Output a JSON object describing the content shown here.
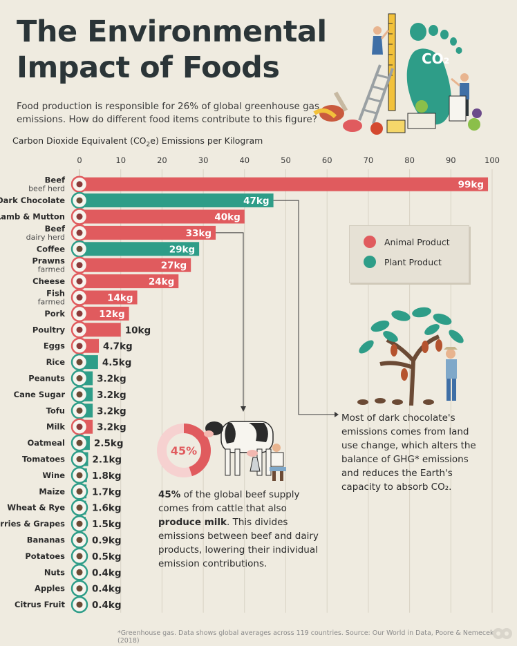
{
  "title_line1": "The Environmental",
  "title_line2": "Impact of Foods",
  "subtitle": "Food production is responsible for 26% of global greenhouse gas emissions. How do different food items contribute to this figure?",
  "axis_title_main": "Carbon Dioxide Equivalent (CO",
  "axis_title_sub": "2",
  "axis_title_end": "e) Emissions per Kilogram",
  "colors": {
    "animal": "#e05b5e",
    "plant": "#2e9d88",
    "background": "#efebe0"
  },
  "legend": {
    "animal_label": "Animal Product",
    "plant_label": "Plant Product"
  },
  "illustration_co2": "CO₂",
  "chart_data": {
    "type": "bar",
    "orientation": "horizontal",
    "xlim": [
      0,
      100
    ],
    "xticks": [
      0,
      10,
      20,
      30,
      40,
      50,
      60,
      70,
      80,
      90,
      100
    ],
    "grid": true,
    "legend_position": "top-right",
    "bars": [
      {
        "name": "Beef",
        "sub": "beef herd",
        "value": 99,
        "label": "99kg",
        "kind": "animal",
        "icon": "beef-icon"
      },
      {
        "name": "Dark Chocolate",
        "sub": "",
        "value": 47,
        "label": "47kg",
        "kind": "plant",
        "icon": "chocolate-icon"
      },
      {
        "name": "Lamb & Mutton",
        "sub": "",
        "value": 40,
        "label": "40kg",
        "kind": "animal",
        "icon": "lamb-icon"
      },
      {
        "name": "Beef",
        "sub": "dairy herd",
        "value": 33,
        "label": "33kg",
        "kind": "animal",
        "icon": "beef-icon"
      },
      {
        "name": "Coffee",
        "sub": "",
        "value": 29,
        "label": "29kg",
        "kind": "plant",
        "icon": "coffee-icon"
      },
      {
        "name": "Prawns",
        "sub": "farmed",
        "value": 27,
        "label": "27kg",
        "kind": "animal",
        "icon": "prawn-icon"
      },
      {
        "name": "Cheese",
        "sub": "",
        "value": 24,
        "label": "24kg",
        "kind": "animal",
        "icon": "cheese-icon"
      },
      {
        "name": "Fish",
        "sub": "farmed",
        "value": 14,
        "label": "14kg",
        "kind": "animal",
        "icon": "fish-icon"
      },
      {
        "name": "Pork",
        "sub": "",
        "value": 12,
        "label": "12kg",
        "kind": "animal",
        "icon": "pork-icon"
      },
      {
        "name": "Poultry",
        "sub": "",
        "value": 10,
        "label": "10kg",
        "kind": "animal",
        "icon": "poultry-icon"
      },
      {
        "name": "Eggs",
        "sub": "",
        "value": 4.7,
        "label": "4.7kg",
        "kind": "animal",
        "icon": "eggs-icon"
      },
      {
        "name": "Rice",
        "sub": "",
        "value": 4.5,
        "label": "4.5kg",
        "kind": "plant",
        "icon": "rice-icon"
      },
      {
        "name": "Peanuts",
        "sub": "",
        "value": 3.2,
        "label": "3.2kg",
        "kind": "plant",
        "icon": "peanut-icon"
      },
      {
        "name": "Cane Sugar",
        "sub": "",
        "value": 3.2,
        "label": "3.2kg",
        "kind": "plant",
        "icon": "sugar-icon"
      },
      {
        "name": "Tofu",
        "sub": "",
        "value": 3.2,
        "label": "3.2kg",
        "kind": "plant",
        "icon": "tofu-icon"
      },
      {
        "name": "Milk",
        "sub": "",
        "value": 3.2,
        "label": "3.2kg",
        "kind": "animal",
        "icon": "milk-icon"
      },
      {
        "name": "Oatmeal",
        "sub": "",
        "value": 2.5,
        "label": "2.5kg",
        "kind": "plant",
        "icon": "oatmeal-icon"
      },
      {
        "name": "Tomatoes",
        "sub": "",
        "value": 2.1,
        "label": "2.1kg",
        "kind": "plant",
        "icon": "tomato-icon"
      },
      {
        "name": "Wine",
        "sub": "",
        "value": 1.8,
        "label": "1.8kg",
        "kind": "plant",
        "icon": "wine-icon"
      },
      {
        "name": "Maize",
        "sub": "",
        "value": 1.7,
        "label": "1.7kg",
        "kind": "plant",
        "icon": "maize-icon"
      },
      {
        "name": "Wheat & Rye",
        "sub": "",
        "value": 1.6,
        "label": "1.6kg",
        "kind": "plant",
        "icon": "wheat-icon"
      },
      {
        "name": "Berries & Grapes",
        "sub": "",
        "value": 1.5,
        "label": "1.5kg",
        "kind": "plant",
        "icon": "grapes-icon"
      },
      {
        "name": "Bananas",
        "sub": "",
        "value": 0.9,
        "label": "0.9kg",
        "kind": "plant",
        "icon": "banana-icon"
      },
      {
        "name": "Potatoes",
        "sub": "",
        "value": 0.5,
        "label": "0.5kg",
        "kind": "plant",
        "icon": "potato-icon"
      },
      {
        "name": "Nuts",
        "sub": "",
        "value": 0.4,
        "label": "0.4kg",
        "kind": "plant",
        "icon": "nuts-icon"
      },
      {
        "name": "Apples",
        "sub": "",
        "value": 0.4,
        "label": "0.4kg",
        "kind": "plant",
        "icon": "apple-icon"
      },
      {
        "name": "Citrus Fruit",
        "sub": "",
        "value": 0.4,
        "label": "0.4kg",
        "kind": "plant",
        "icon": "citrus-icon"
      }
    ]
  },
  "beef_note": {
    "percent_label": "45%",
    "percent_value": 45,
    "bold_lead": "45%",
    "text_1": " of the global beef supply comes from cattle that also ",
    "bold_mid": "produce milk",
    "text_2": ". This divides emissions between beef and dairy products, lowering their individual emission contributions."
  },
  "chocolate_note": "Most of dark chocolate's emissions comes from land use change, which alters the balance of GHG* emissions and reduces the Earth's capacity to absorb CO₂.",
  "footer": "*Greenhouse gas. Data shows global averages across 119 countries. Source: Our World in Data, Poore & Nemecek (2018)"
}
